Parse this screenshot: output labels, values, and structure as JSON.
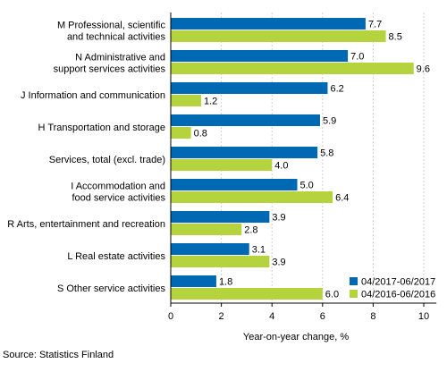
{
  "chart_data": {
    "type": "bar",
    "orientation": "horizontal",
    "categories": [
      [
        "M Professional, scientific",
        "and technical activities"
      ],
      [
        "N Administrative and",
        "support services activities"
      ],
      [
        "J Information and communication"
      ],
      [
        "H Transportation and storage"
      ],
      [
        "Services, total (excl. trade)"
      ],
      [
        "I Accommodation and",
        "food service activities"
      ],
      [
        "R Arts, entertainment and recreation"
      ],
      [
        "L Real estate activities"
      ],
      [
        "S Other service activities"
      ]
    ],
    "series": [
      {
        "name": "04/2017-06/2017",
        "color": "#0069b4",
        "values": [
          7.7,
          7.0,
          6.2,
          5.9,
          5.8,
          5.0,
          3.9,
          3.1,
          1.8
        ]
      },
      {
        "name": "04/2016-06/2016",
        "color": "#b5d33d",
        "values": [
          8.5,
          9.6,
          1.2,
          0.8,
          4.0,
          6.4,
          2.8,
          3.9,
          6.0
        ]
      }
    ],
    "value_labels": [
      [
        "7.7",
        "7.0",
        "6.2",
        "5.9",
        "5.8",
        "5.0",
        "3.9",
        "3.1",
        "1.8"
      ],
      [
        "8.5",
        "9.6",
        "1.2",
        "0.8",
        "4.0",
        "6.4",
        "2.8",
        "3.9",
        "6.0"
      ]
    ],
    "xlabel": "Year-on-year change, %",
    "xlim": [
      0,
      10.5
    ],
    "xticks": [
      "0",
      "2",
      "4",
      "6",
      "8",
      "10"
    ],
    "grid": "vertical",
    "legend": "bottom-right"
  },
  "source": "Source: Statistics Finland"
}
